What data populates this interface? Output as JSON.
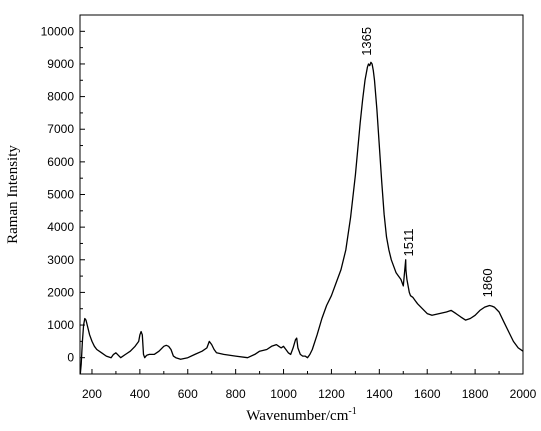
{
  "chart_data": {
    "type": "line",
    "xlabel": "Wavenumber/cm",
    "xlabel_superscript": "-1",
    "ylabel": "Raman Intensity",
    "xlim": [
      150,
      2000
    ],
    "ylim": [
      -500,
      10500
    ],
    "x_ticks": [
      200,
      400,
      600,
      800,
      1000,
      1200,
      1400,
      1600,
      1800,
      2000
    ],
    "y_ticks": [
      0,
      1000,
      2000,
      3000,
      4000,
      5000,
      6000,
      7000,
      8000,
      9000,
      10000
    ],
    "grid": false,
    "line_color": "#000000",
    "series": [
      {
        "x": [
          150,
          155,
          160,
          165,
          170,
          175,
          180,
          190,
          200,
          210,
          220,
          240,
          260,
          280,
          290,
          300,
          320,
          340,
          360,
          380,
          395,
          400,
          405,
          410,
          415,
          420,
          425,
          430,
          440,
          460,
          480,
          500,
          510,
          520,
          530,
          540,
          550,
          570,
          600,
          630,
          660,
          680,
          690,
          700,
          710,
          720,
          750,
          800,
          850,
          880,
          900,
          930,
          950,
          970,
          980,
          990,
          1000,
          1010,
          1020,
          1030,
          1040,
          1050,
          1055,
          1060,
          1070,
          1080,
          1090,
          1100,
          1110,
          1120,
          1140,
          1160,
          1180,
          1200,
          1220,
          1240,
          1260,
          1280,
          1300,
          1320,
          1330,
          1340,
          1350,
          1355,
          1360,
          1365,
          1370,
          1375,
          1380,
          1390,
          1400,
          1410,
          1420,
          1430,
          1440,
          1450,
          1460,
          1470,
          1480,
          1490,
          1500,
          1505,
          1510,
          1511,
          1515,
          1520,
          1525,
          1530,
          1540,
          1550,
          1560,
          1580,
          1600,
          1620,
          1650,
          1680,
          1700,
          1720,
          1740,
          1760,
          1780,
          1800,
          1820,
          1840,
          1860,
          1870,
          1880,
          1900,
          1920,
          1940,
          1960,
          1980,
          2000
        ],
        "y": [
          -600,
          -200,
          500,
          1000,
          1200,
          1150,
          1000,
          700,
          500,
          350,
          250,
          150,
          50,
          0,
          100,
          150,
          0,
          100,
          200,
          350,
          500,
          700,
          800,
          700,
          100,
          0,
          50,
          80,
          100,
          100,
          200,
          350,
          380,
          350,
          250,
          50,
          0,
          -50,
          0,
          100,
          200,
          300,
          500,
          400,
          250,
          150,
          100,
          50,
          0,
          100,
          200,
          250,
          350,
          400,
          350,
          300,
          350,
          250,
          150,
          100,
          300,
          550,
          600,
          300,
          100,
          50,
          50,
          0,
          100,
          250,
          700,
          1200,
          1600,
          1900,
          2300,
          2700,
          3300,
          4300,
          5600,
          7200,
          7900,
          8500,
          8900,
          9000,
          8950,
          9050,
          9000,
          8800,
          8500,
          7600,
          6500,
          5400,
          4400,
          3700,
          3300,
          3000,
          2800,
          2600,
          2500,
          2400,
          2200,
          2600,
          3000,
          2700,
          2400,
          2200,
          2000,
          1900,
          1850,
          1750,
          1650,
          1500,
          1350,
          1300,
          1350,
          1400,
          1450,
          1350,
          1250,
          1150,
          1200,
          1300,
          1450,
          1550,
          1600,
          1580,
          1550,
          1400,
          1100,
          800,
          500,
          300,
          200
        ]
      }
    ],
    "annotations": [
      {
        "text": "1365",
        "x": 1365,
        "y": 9250,
        "rotate": -90
      },
      {
        "text": "1511",
        "x": 1540,
        "y": 3100,
        "rotate": -90
      },
      {
        "text": "1860",
        "x": 1870,
        "y": 1850,
        "rotate": -90
      }
    ]
  }
}
